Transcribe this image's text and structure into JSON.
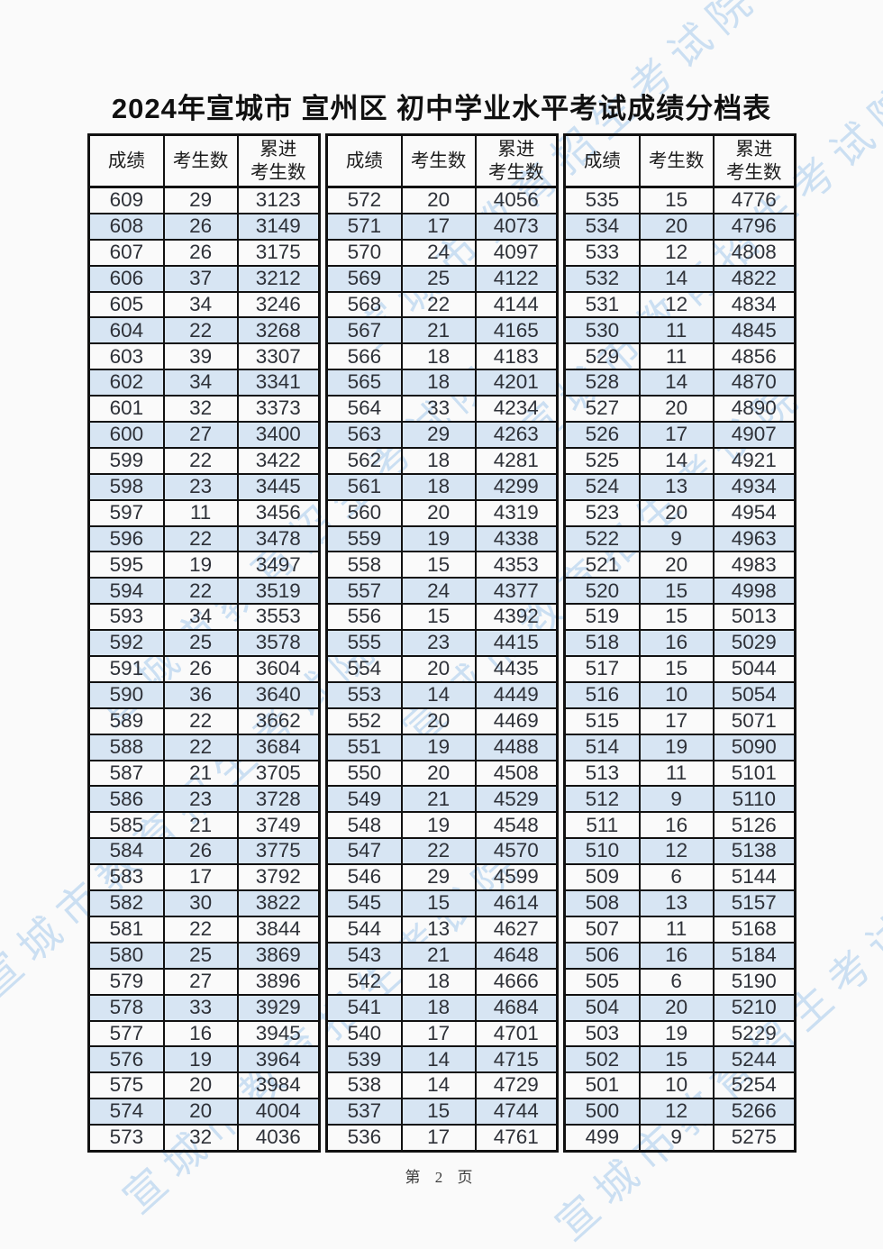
{
  "page": {
    "title": "2024年宣城市 宣州区 初中学业水平考试成绩分档表",
    "page_number": "第 2 页",
    "watermark_text": "宣城市教育招生考试院"
  },
  "colors": {
    "stripe": "#d7e5f3",
    "border": "#111111",
    "text": "#2e3138",
    "watermark": "rgba(125,180,228,0.38)"
  },
  "table": {
    "column_headers": [
      "成绩",
      "考生数",
      "累进\n考生数"
    ],
    "groups": [
      {
        "rows": [
          [
            609,
            29,
            3123
          ],
          [
            608,
            26,
            3149
          ],
          [
            607,
            26,
            3175
          ],
          [
            606,
            37,
            3212
          ],
          [
            605,
            34,
            3246
          ],
          [
            604,
            22,
            3268
          ],
          [
            603,
            39,
            3307
          ],
          [
            602,
            34,
            3341
          ],
          [
            601,
            32,
            3373
          ],
          [
            600,
            27,
            3400
          ],
          [
            599,
            22,
            3422
          ],
          [
            598,
            23,
            3445
          ],
          [
            597,
            11,
            3456
          ],
          [
            596,
            22,
            3478
          ],
          [
            595,
            19,
            3497
          ],
          [
            594,
            22,
            3519
          ],
          [
            593,
            34,
            3553
          ],
          [
            592,
            25,
            3578
          ],
          [
            591,
            26,
            3604
          ],
          [
            590,
            36,
            3640
          ],
          [
            589,
            22,
            3662
          ],
          [
            588,
            22,
            3684
          ],
          [
            587,
            21,
            3705
          ],
          [
            586,
            23,
            3728
          ],
          [
            585,
            21,
            3749
          ],
          [
            584,
            26,
            3775
          ],
          [
            583,
            17,
            3792
          ],
          [
            582,
            30,
            3822
          ],
          [
            581,
            22,
            3844
          ],
          [
            580,
            25,
            3869
          ],
          [
            579,
            27,
            3896
          ],
          [
            578,
            33,
            3929
          ],
          [
            577,
            16,
            3945
          ],
          [
            576,
            19,
            3964
          ],
          [
            575,
            20,
            3984
          ],
          [
            574,
            20,
            4004
          ],
          [
            573,
            32,
            4036
          ]
        ]
      },
      {
        "rows": [
          [
            572,
            20,
            4056
          ],
          [
            571,
            17,
            4073
          ],
          [
            570,
            24,
            4097
          ],
          [
            569,
            25,
            4122
          ],
          [
            568,
            22,
            4144
          ],
          [
            567,
            21,
            4165
          ],
          [
            566,
            18,
            4183
          ],
          [
            565,
            18,
            4201
          ],
          [
            564,
            33,
            4234
          ],
          [
            563,
            29,
            4263
          ],
          [
            562,
            18,
            4281
          ],
          [
            561,
            18,
            4299
          ],
          [
            560,
            20,
            4319
          ],
          [
            559,
            19,
            4338
          ],
          [
            558,
            15,
            4353
          ],
          [
            557,
            24,
            4377
          ],
          [
            556,
            15,
            4392
          ],
          [
            555,
            23,
            4415
          ],
          [
            554,
            20,
            4435
          ],
          [
            553,
            14,
            4449
          ],
          [
            552,
            20,
            4469
          ],
          [
            551,
            19,
            4488
          ],
          [
            550,
            20,
            4508
          ],
          [
            549,
            21,
            4529
          ],
          [
            548,
            19,
            4548
          ],
          [
            547,
            22,
            4570
          ],
          [
            546,
            29,
            4599
          ],
          [
            545,
            15,
            4614
          ],
          [
            544,
            13,
            4627
          ],
          [
            543,
            21,
            4648
          ],
          [
            542,
            18,
            4666
          ],
          [
            541,
            18,
            4684
          ],
          [
            540,
            17,
            4701
          ],
          [
            539,
            14,
            4715
          ],
          [
            538,
            14,
            4729
          ],
          [
            537,
            15,
            4744
          ],
          [
            536,
            17,
            4761
          ]
        ]
      },
      {
        "rows": [
          [
            535,
            15,
            4776
          ],
          [
            534,
            20,
            4796
          ],
          [
            533,
            12,
            4808
          ],
          [
            532,
            14,
            4822
          ],
          [
            531,
            12,
            4834
          ],
          [
            530,
            11,
            4845
          ],
          [
            529,
            11,
            4856
          ],
          [
            528,
            14,
            4870
          ],
          [
            527,
            20,
            4890
          ],
          [
            526,
            17,
            4907
          ],
          [
            525,
            14,
            4921
          ],
          [
            524,
            13,
            4934
          ],
          [
            523,
            20,
            4954
          ],
          [
            522,
            9,
            4963
          ],
          [
            521,
            20,
            4983
          ],
          [
            520,
            15,
            4998
          ],
          [
            519,
            15,
            5013
          ],
          [
            518,
            16,
            5029
          ],
          [
            517,
            15,
            5044
          ],
          [
            516,
            10,
            5054
          ],
          [
            515,
            17,
            5071
          ],
          [
            514,
            19,
            5090
          ],
          [
            513,
            11,
            5101
          ],
          [
            512,
            9,
            5110
          ],
          [
            511,
            16,
            5126
          ],
          [
            510,
            12,
            5138
          ],
          [
            509,
            6,
            5144
          ],
          [
            508,
            13,
            5157
          ],
          [
            507,
            11,
            5168
          ],
          [
            506,
            16,
            5184
          ],
          [
            505,
            6,
            5190
          ],
          [
            504,
            20,
            5210
          ],
          [
            503,
            19,
            5229
          ],
          [
            502,
            15,
            5244
          ],
          [
            501,
            10,
            5254
          ],
          [
            500,
            12,
            5266
          ],
          [
            499,
            9,
            5275
          ]
        ]
      }
    ]
  }
}
